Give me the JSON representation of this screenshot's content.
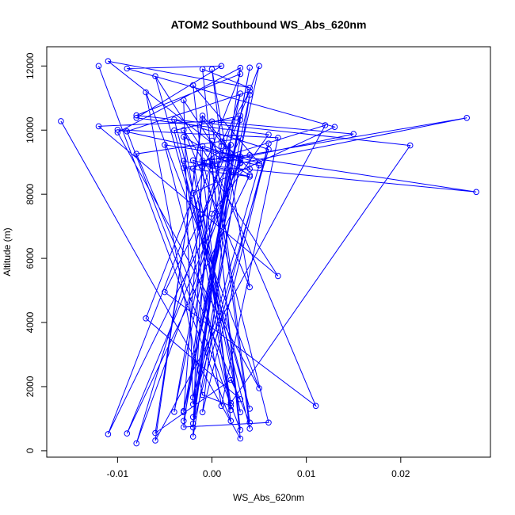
{
  "chart_data": {
    "type": "line",
    "title": "ATOM2 Southbound WS_Abs_620nm",
    "xlabel": "WS_Abs_620nm",
    "ylabel": "Altitude (m)",
    "xlim": [
      -0.0175,
      0.0295
    ],
    "ylim": [
      -200,
      12600
    ],
    "xticks": [
      -0.01,
      0.0,
      0.01,
      0.02
    ],
    "xtick_labels": [
      "-0.01",
      "0.00",
      "0.01",
      "0.02"
    ],
    "yticks": [
      0,
      2000,
      4000,
      6000,
      8000,
      10000,
      12000
    ],
    "ytick_labels": [
      "0",
      "2000",
      "4000",
      "6000",
      "8000",
      "10000",
      "12000"
    ],
    "grid": false,
    "legend": "none",
    "marker": "open-circle",
    "color": "#0000ff",
    "series": [
      {
        "x": [
          -0.016,
          0.003,
          -0.001,
          0.004,
          -0.011,
          0.002,
          0.027,
          0.003,
          -0.011,
          0.0,
          -0.006,
          0.004,
          -0.004,
          0.006,
          -0.002,
          -0.003,
          0.001,
          0.003,
          -0.01,
          0.007,
          0.001,
          -0.003,
          0.004,
          -0.003,
          0.002,
          0.005,
          -0.002,
          0.003,
          -0.012,
          0.007,
          -0.003,
          0.004,
          0.0,
          0.001,
          -0.004,
          0.003,
          -0.008,
          0.003,
          0.004,
          -0.003,
          -0.001,
          0.015,
          0.0,
          0.004,
          -0.008,
          0.003,
          -0.005,
          0.011,
          0.0,
          0.012,
          -0.006,
          -0.001,
          0.003,
          -0.002,
          0.003,
          -0.01,
          0.005,
          -0.007,
          -0.001,
          0.002,
          -0.005,
          0.028,
          0.0,
          0.003,
          -0.009,
          0.004,
          0.001,
          0.004,
          0.004,
          -0.001,
          0.006,
          -0.003,
          0.0,
          0.006,
          -0.008,
          0.001,
          -0.009,
          0.013,
          -0.002,
          0.003,
          -0.002,
          0.002,
          -0.001,
          0.006,
          -0.002,
          0.002,
          -0.002,
          0.002,
          0.021,
          -0.008,
          0.003,
          -0.007,
          0.003,
          0.002,
          -0.006,
          -0.001,
          0.002,
          -0.002,
          0.0,
          0.004,
          -0.004,
          0.003,
          -0.003,
          0.004,
          -0.003,
          0.005,
          -0.001,
          0.002,
          -0.003,
          0.004,
          -0.009,
          0.003,
          -0.002,
          -0.001,
          0.005,
          -0.002,
          0.002,
          -0.012
        ],
        "y": [
          10280,
          380,
          11900,
          11320,
          12150,
          9130,
          10380,
          8970,
          520,
          8950,
          11680,
          1310,
          10330,
          9400,
          1450,
          10930,
          9150,
          9170,
          10010,
          9760,
          1400,
          9040,
          8550,
          8820,
          9090,
          8900,
          1660,
          10320,
          10120,
          5450,
          10000,
          5100,
          11900,
          9500,
          1210,
          11140,
          230,
          9170,
          11100,
          1200,
          8870,
          9880,
          10270,
          880,
          9260,
          9740,
          4950,
          1400,
          9060,
          10150,
          320,
          10450,
          8990,
          1050,
          11940,
          9930,
          1950,
          11180,
          1740,
          1400,
          9540,
          8070,
          8880,
          650,
          9960,
          11210,
          9640,
          8790,
          9220,
          9050,
          880,
          740,
          7390,
          9860,
          10380,
          12000,
          11920,
          10100,
          8040,
          1200,
          9060,
          8730,
          1200,
          9580,
          850,
          9540,
          8800,
          1490,
          9520,
          10460,
          11750,
          4130,
          1610,
          2210,
          550,
          10340,
          9280,
          730,
          9670,
          690,
          9990,
          10450,
          930,
          11950,
          1240,
          12000,
          7380,
          1270,
          9790,
          8600,
          540,
          9080,
          440,
          9500,
          8970,
          11400,
          930,
          12000
        ]
      }
    ]
  }
}
